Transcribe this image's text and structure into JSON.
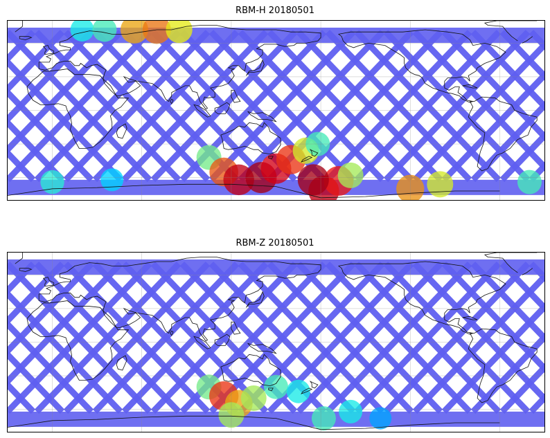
{
  "panels": [
    {
      "title": "RBM-H 20180501",
      "hotspots": [
        {
          "lon": -178,
          "lat": -72,
          "value": 0.92
        },
        {
          "lon": -168,
          "lat": -63,
          "value": 0.85
        },
        {
          "lon": -160,
          "lat": -58,
          "value": 0.55
        },
        {
          "lon": -120,
          "lat": -70,
          "value": 0.72
        },
        {
          "lon": -100,
          "lat": -66,
          "value": 0.6
        },
        {
          "lon": -40,
          "lat": -64,
          "value": 0.45
        },
        {
          "lon": 0,
          "lat": -64,
          "value": 0.42
        },
        {
          "lon": 40,
          "lat": -62,
          "value": 0.35
        },
        {
          "lon": 20,
          "lat": 72,
          "value": 0.4
        },
        {
          "lon": 35,
          "lat": 72,
          "value": 0.45
        },
        {
          "lon": 55,
          "lat": 72,
          "value": 0.7
        },
        {
          "lon": 70,
          "lat": 72,
          "value": 0.75
        },
        {
          "lon": 85,
          "lat": 72,
          "value": 0.62
        },
        {
          "lon": 105,
          "lat": -42,
          "value": 0.5
        },
        {
          "lon": 115,
          "lat": -55,
          "value": 0.78
        },
        {
          "lon": 125,
          "lat": -62,
          "value": 0.92
        },
        {
          "lon": 140,
          "lat": -60,
          "value": 0.95
        },
        {
          "lon": 150,
          "lat": -52,
          "value": 0.9
        },
        {
          "lon": 160,
          "lat": -44,
          "value": 0.82
        },
        {
          "lon": 170,
          "lat": -36,
          "value": 0.6
        },
        {
          "lon": 178,
          "lat": -30,
          "value": 0.45
        },
        {
          "lon": 175,
          "lat": -62,
          "value": 0.95
        }
      ]
    },
    {
      "title": "RBM-Z 20180501",
      "hotspots": [
        {
          "lon": -178,
          "lat": -68,
          "value": 0.45
        },
        {
          "lon": -160,
          "lat": -62,
          "value": 0.4
        },
        {
          "lon": -140,
          "lat": -68,
          "value": 0.3
        },
        {
          "lon": 105,
          "lat": -40,
          "value": 0.5
        },
        {
          "lon": 115,
          "lat": -48,
          "value": 0.82
        },
        {
          "lon": 125,
          "lat": -55,
          "value": 0.7
        },
        {
          "lon": 135,
          "lat": -50,
          "value": 0.55
        },
        {
          "lon": 150,
          "lat": -40,
          "value": 0.45
        },
        {
          "lon": 165,
          "lat": -44,
          "value": 0.4
        },
        {
          "lon": 120,
          "lat": -65,
          "value": 0.55
        }
      ]
    }
  ],
  "map": {
    "projection": "PlateCarree",
    "central_longitude": 150,
    "lon_range": [
      -180,
      180
    ],
    "lat_range": [
      -90,
      90
    ],
    "gridlines": true,
    "colormap": "jet",
    "track_color": "#5f5ff0",
    "background_color": "#ffffff"
  }
}
